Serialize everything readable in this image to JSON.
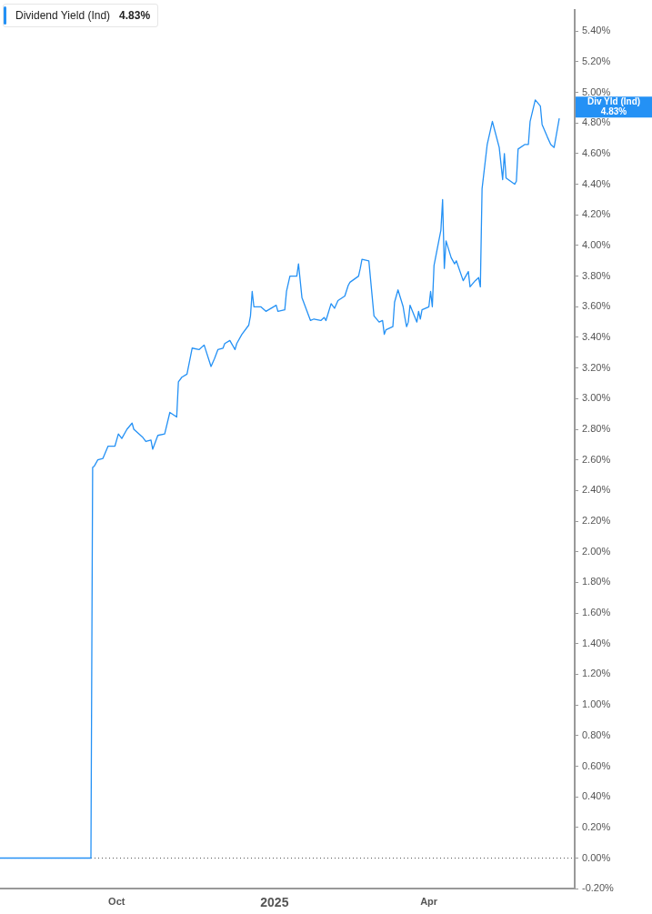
{
  "chart_data": {
    "type": "line",
    "x": [
      "2024-07-25",
      "2024-09-16",
      "2024-09-17",
      "2024-09-18",
      "2024-09-20",
      "2024-09-23",
      "2024-09-26",
      "2024-09-30",
      "2024-10-02",
      "2024-10-04",
      "2024-10-07",
      "2024-10-10",
      "2024-10-11",
      "2024-10-16",
      "2024-10-18",
      "2024-10-21",
      "2024-10-22",
      "2024-10-25",
      "2024-10-29",
      "2024-11-01",
      "2024-11-05",
      "2024-11-06",
      "2024-11-08",
      "2024-11-11",
      "2024-11-14",
      "2024-11-18",
      "2024-11-21",
      "2024-11-25",
      "2024-11-27",
      "2024-11-29",
      "2024-12-02",
      "2024-12-03",
      "2024-12-06",
      "2024-12-09",
      "2024-12-10",
      "2024-12-13",
      "2024-12-17",
      "2024-12-18",
      "2024-12-19",
      "2024-12-20",
      "2024-12-24",
      "2024-12-27",
      "2025-01-02",
      "2025-01-03",
      "2025-01-07",
      "2025-01-08",
      "2025-01-10",
      "2025-01-14",
      "2025-01-15",
      "2025-01-17",
      "2025-01-22",
      "2025-01-24",
      "2025-01-28",
      "2025-01-30",
      "2025-01-31",
      "2025-02-03",
      "2025-02-05",
      "2025-02-07",
      "2025-02-11",
      "2025-02-13",
      "2025-02-14",
      "2025-02-19",
      "2025-02-20",
      "2025-02-21",
      "2025-02-25",
      "2025-02-28",
      "2025-03-03",
      "2025-03-05",
      "2025-03-06",
      "2025-03-07",
      "2025-03-11",
      "2025-03-12",
      "2025-03-14",
      "2025-03-17",
      "2025-03-18",
      "2025-03-19",
      "2025-03-20",
      "2025-03-21",
      "2025-03-25",
      "2025-03-26",
      "2025-03-27",
      "2025-03-28",
      "2025-04-01",
      "2025-04-02",
      "2025-04-03",
      "2025-04-04",
      "2025-04-08",
      "2025-04-09",
      "2025-04-10",
      "2025-04-11",
      "2025-04-14",
      "2025-04-16",
      "2025-04-17",
      "2025-04-21",
      "2025-04-24",
      "2025-04-25",
      "2025-04-28",
      "2025-04-30",
      "2025-05-01",
      "2025-05-02",
      "2025-05-05",
      "2025-05-08",
      "2025-05-12",
      "2025-05-14",
      "2025-05-15",
      "2025-05-16",
      "2025-05-21",
      "2025-05-22",
      "2025-05-23",
      "2025-05-27",
      "2025-05-29",
      "2025-05-30",
      "2025-06-02",
      "2025-06-05",
      "2025-06-06",
      "2025-06-09",
      "2025-06-11",
      "2025-06-13",
      "2025-06-16"
    ],
    "series": [
      {
        "name": "Dividend Yield (Ind)",
        "color": "#2491f5",
        "values": [
          0,
          0,
          2.55,
          2.56,
          2.6,
          2.61,
          2.69,
          2.69,
          2.77,
          2.74,
          2.8,
          2.84,
          2.8,
          2.75,
          2.72,
          2.73,
          2.67,
          2.76,
          2.77,
          2.91,
          2.88,
          3.11,
          3.14,
          3.16,
          3.33,
          3.32,
          3.35,
          3.21,
          3.26,
          3.32,
          3.33,
          3.36,
          3.38,
          3.32,
          3.36,
          3.42,
          3.48,
          3.54,
          3.7,
          3.6,
          3.6,
          3.57,
          3.61,
          3.57,
          3.58,
          3.7,
          3.8,
          3.8,
          3.88,
          3.66,
          3.51,
          3.52,
          3.51,
          3.53,
          3.51,
          3.62,
          3.59,
          3.64,
          3.67,
          3.74,
          3.76,
          3.8,
          3.85,
          3.91,
          3.9,
          3.54,
          3.5,
          3.51,
          3.42,
          3.45,
          3.47,
          3.63,
          3.71,
          3.6,
          3.53,
          3.47,
          3.5,
          3.61,
          3.5,
          3.57,
          3.52,
          3.58,
          3.6,
          3.7,
          3.6,
          3.87,
          4.1,
          4.3,
          3.85,
          4.03,
          3.92,
          3.88,
          3.9,
          3.77,
          3.83,
          3.73,
          3.77,
          3.79,
          3.73,
          4.37,
          4.66,
          4.81,
          4.64,
          4.43,
          4.6,
          4.44,
          4.4,
          4.42,
          4.63,
          4.66,
          4.66,
          4.81,
          4.95,
          4.91,
          4.79,
          4.71,
          4.66,
          4.64,
          4.83
        ]
      }
    ],
    "xlim": [
      "2024-07-25",
      "2025-06-25"
    ],
    "xticks": [
      {
        "value": "2024-10-01",
        "label": "Oct"
      },
      {
        "value": "2025-01-01",
        "label": "2025"
      },
      {
        "value": "2025-04-01",
        "label": "Apr"
      }
    ],
    "ylim": [
      -0.2,
      5.54
    ],
    "yticks": [
      {
        "value": -0.2,
        "label": "-0.20%"
      },
      {
        "value": 0,
        "label": "0.00%"
      },
      {
        "value": 0.2,
        "label": "0.20%"
      },
      {
        "value": 0.4,
        "label": "0.40%"
      },
      {
        "value": 0.6,
        "label": "0.60%"
      },
      {
        "value": 0.8,
        "label": "0.80%"
      },
      {
        "value": 1,
        "label": "1.00%"
      },
      {
        "value": 1.2,
        "label": "1.20%"
      },
      {
        "value": 1.4,
        "label": "1.40%"
      },
      {
        "value": 1.6,
        "label": "1.60%"
      },
      {
        "value": 1.8,
        "label": "1.80%"
      },
      {
        "value": 2,
        "label": "2.00%"
      },
      {
        "value": 2.2,
        "label": "2.20%"
      },
      {
        "value": 2.4,
        "label": "2.40%"
      },
      {
        "value": 2.6,
        "label": "2.60%"
      },
      {
        "value": 2.8,
        "label": "2.80%"
      },
      {
        "value": 3,
        "label": "3.00%"
      },
      {
        "value": 3.2,
        "label": "3.20%"
      },
      {
        "value": 3.4,
        "label": "3.40%"
      },
      {
        "value": 3.6,
        "label": "3.60%"
      },
      {
        "value": 3.8,
        "label": "3.80%"
      },
      {
        "value": 4,
        "label": "4.00%"
      },
      {
        "value": 4.2,
        "label": "4.20%"
      },
      {
        "value": 4.4,
        "label": "4.40%"
      },
      {
        "value": 4.6,
        "label": "4.60%"
      },
      {
        "value": 4.8,
        "label": "4.80%"
      },
      {
        "value": 5,
        "label": "5.00%"
      },
      {
        "value": 5.2,
        "label": "5.20%"
      },
      {
        "value": 5.4,
        "label": "5.40%"
      }
    ],
    "ref_lines": [
      {
        "axis": "y",
        "value": 0,
        "color": "#555555",
        "line_style": "dotted"
      }
    ],
    "annotations": [
      "Div Yld (Ind)",
      "4.83%",
      "4.83%"
    ],
    "legend": "top left",
    "marker": "none",
    "line_style": "solid"
  }
}
